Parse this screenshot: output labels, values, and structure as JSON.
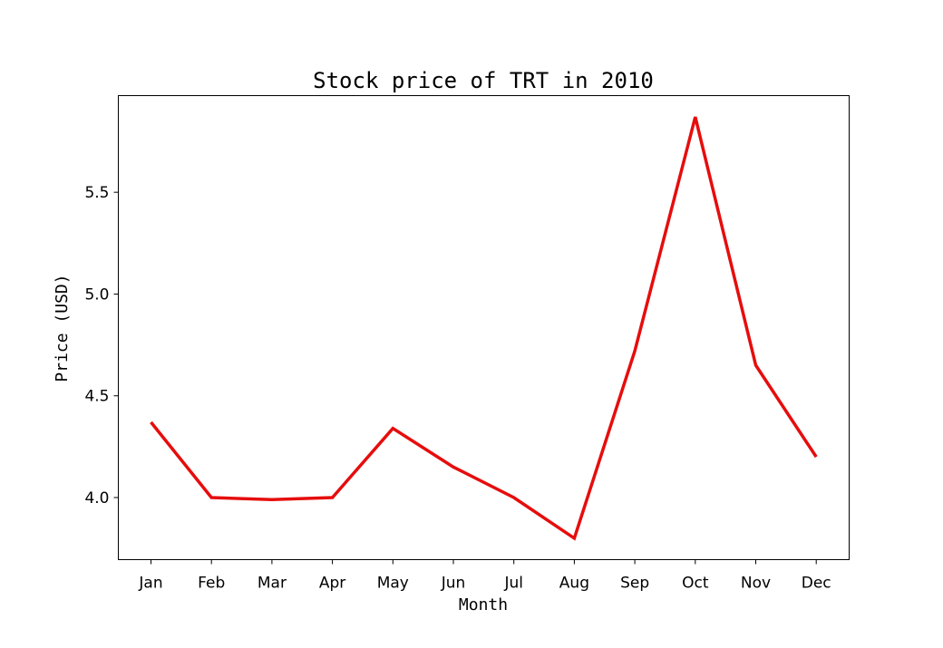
{
  "chart_data": {
    "type": "line",
    "title": "Stock price of TRT in 2010",
    "xlabel": "Month",
    "ylabel": "Price (USD)",
    "categories": [
      "Jan",
      "Feb",
      "Mar",
      "Apr",
      "May",
      "Jun",
      "Jul",
      "Aug",
      "Sep",
      "Oct",
      "Nov",
      "Dec"
    ],
    "series": [
      {
        "values": [
          4.37,
          4.0,
          3.99,
          4.0,
          4.34,
          4.15,
          4.0,
          3.8,
          4.72,
          5.87,
          4.65,
          4.2
        ],
        "color": "#e60d0d"
      }
    ],
    "ylim": [
      3.695,
      5.975
    ],
    "yticks": [
      4.0,
      4.5,
      5.0,
      5.5
    ],
    "ytick_labels": [
      "4.0",
      "4.5",
      "5.0",
      "5.5"
    ],
    "grid": false,
    "legend": "none"
  }
}
